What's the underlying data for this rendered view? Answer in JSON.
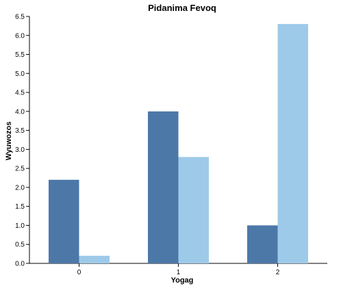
{
  "chart_data": {
    "type": "bar",
    "title": "Pidanima Fevoq",
    "xlabel": "Yogag",
    "ylabel": "Wyuwozos",
    "categories": [
      "0",
      "1",
      "2"
    ],
    "series": [
      {
        "values": [
          2.2,
          4.0,
          1.0
        ],
        "color": "#4c78a8"
      },
      {
        "values": [
          0.2,
          2.8,
          6.3
        ],
        "color": "#9ecae9"
      }
    ],
    "ylim": [
      0,
      6.5
    ],
    "yticks": [
      "0.0",
      "0.5",
      "1.0",
      "1.5",
      "2.0",
      "2.5",
      "3.0",
      "3.5",
      "4.0",
      "4.5",
      "5.0",
      "5.5",
      "6.0",
      "6.5"
    ],
    "grid": false,
    "legend": "none"
  }
}
